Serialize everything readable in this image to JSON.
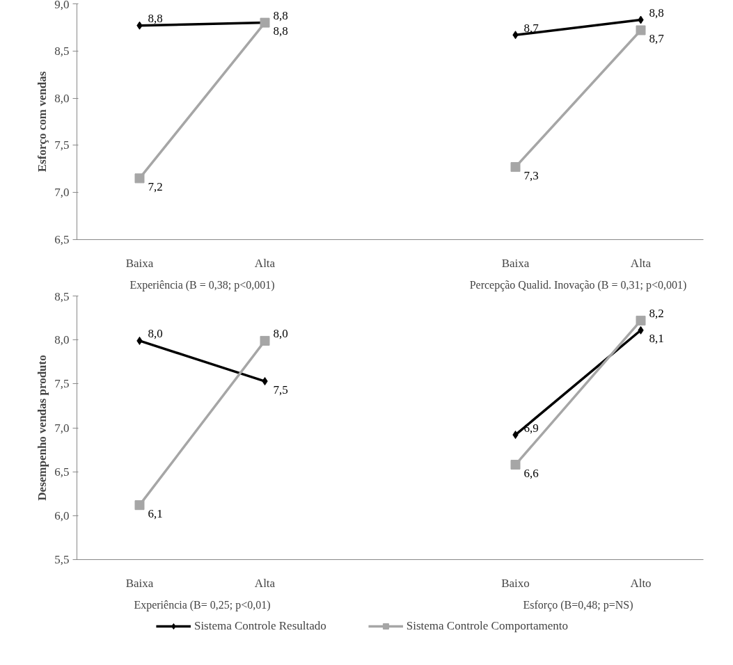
{
  "chart_data": [
    {
      "type": "line",
      "ylabel": "Esforço com vendas",
      "categories": [
        "Baixa",
        "Alta",
        null,
        "Baixa",
        "Alta"
      ],
      "ylim": [
        6.5,
        9.0
      ],
      "yticks": [
        {
          "value": 6.5,
          "label": "6,5"
        },
        {
          "value": 7.0,
          "label": "7,0"
        },
        {
          "value": 7.5,
          "label": "7,5"
        },
        {
          "value": 8.0,
          "label": "8,0"
        },
        {
          "value": 8.5,
          "label": "8,5"
        },
        {
          "value": 9.0,
          "label": "9,0"
        }
      ],
      "grid": false,
      "legend": false,
      "annotations": [
        "Experiência (B = 0,38; p<0,001)",
        "Percepção Qualid. Inovação (B = 0,31; p<0,001)"
      ],
      "series": [
        {
          "color": "#000000",
          "marker": "diamond",
          "values": [
            8.77,
            8.8,
            null,
            8.67,
            8.83
          ],
          "value_labels": [
            "8,8",
            "8,8",
            null,
            "8,7",
            "8,8"
          ]
        },
        {
          "color": "#a6a6a6",
          "marker": "square",
          "values": [
            7.15,
            8.8,
            null,
            7.27,
            8.72
          ],
          "value_labels": [
            "7,2",
            "8,8",
            null,
            "7,3",
            "8,7"
          ]
        }
      ]
    },
    {
      "type": "line",
      "ylabel": "Desempenho vendas produto",
      "categories": [
        "Baixa",
        "Alta",
        null,
        "Baixo",
        "Alto"
      ],
      "ylim": [
        5.5,
        8.5
      ],
      "yticks": [
        {
          "value": 5.5,
          "label": "5,5"
        },
        {
          "value": 6.0,
          "label": "6,0"
        },
        {
          "value": 6.5,
          "label": "6,5"
        },
        {
          "value": 7.0,
          "label": "7,0"
        },
        {
          "value": 7.5,
          "label": "7,5"
        },
        {
          "value": 8.0,
          "label": "8,0"
        },
        {
          "value": 8.5,
          "label": "8,5"
        }
      ],
      "grid": false,
      "legend": "bottom",
      "annotations": [
        "Experiência (B= 0,25; p<0,01)",
        "Esforço (B=0,48; p=NS)"
      ],
      "series": [
        {
          "name": "Sistema Controle Resultado",
          "color": "#000000",
          "marker": "diamond",
          "values": [
            7.99,
            7.53,
            null,
            6.92,
            8.11
          ],
          "value_labels": [
            "8,0",
            "7,5",
            null,
            "6,9",
            "8,1"
          ]
        },
        {
          "name": "Sistema Controle Comportamento",
          "color": "#a6a6a6",
          "marker": "square",
          "values": [
            6.12,
            7.99,
            null,
            6.58,
            8.22
          ],
          "value_labels": [
            "6,1",
            "8,0",
            null,
            "6,6",
            "8,2"
          ]
        }
      ]
    }
  ]
}
